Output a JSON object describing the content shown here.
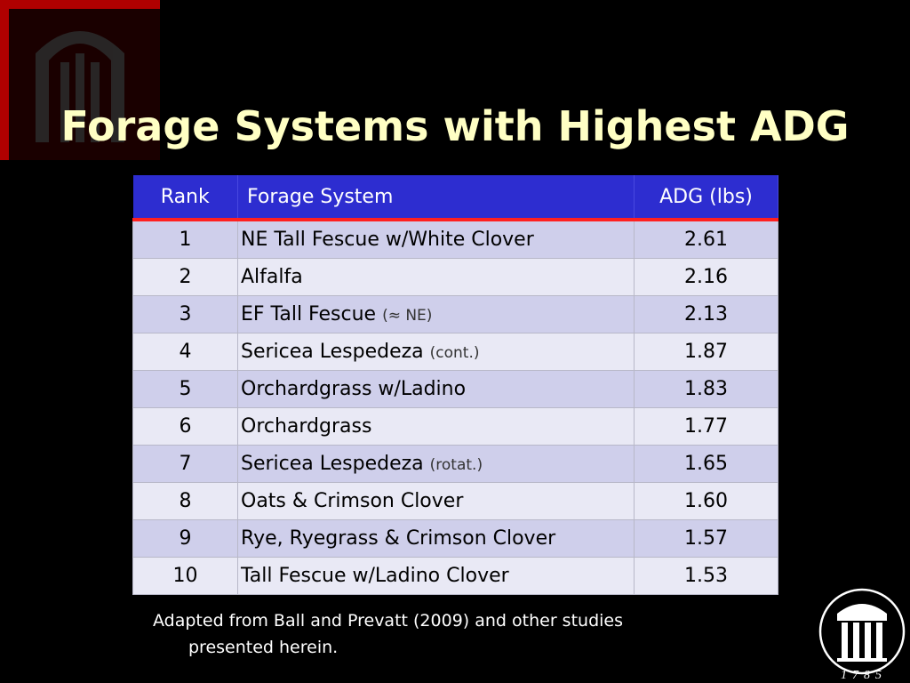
{
  "slide": {
    "title": "Forage Systems with Highest ADG",
    "table": {
      "headers": [
        "Rank",
        "Forage System",
        "ADG (lbs)"
      ],
      "rows": [
        {
          "rank": "1",
          "system": "NE Tall Fescue w/White Clover",
          "note": "",
          "adg": "2.61"
        },
        {
          "rank": "2",
          "system": "Alfalfa",
          "note": "",
          "adg": "2.16"
        },
        {
          "rank": "3",
          "system": "EF Tall Fescue ",
          "note": "(≈ NE)",
          "adg": "2.13"
        },
        {
          "rank": "4",
          "system": "Sericea Lespedeza ",
          "note": "(cont.)",
          "adg": "1.87"
        },
        {
          "rank": "5",
          "system": "Orchardgrass w/Ladino",
          "note": "",
          "adg": "1.83"
        },
        {
          "rank": "6",
          "system": "Orchardgrass",
          "note": "",
          "adg": "1.77"
        },
        {
          "rank": "7",
          "system": "Sericea Lespedeza ",
          "note": "(rotat.)",
          "adg": "1.65"
        },
        {
          "rank": "8",
          "system": "Oats & Crimson Clover",
          "note": "",
          "adg": "1.60"
        },
        {
          "rank": "9",
          "system": "Rye, Ryegrass & Crimson Clover",
          "note": "",
          "adg": "1.57"
        },
        {
          "rank": "10",
          "system": "Tall Fescue w/Ladino Clover",
          "note": "",
          "adg": "1.53"
        }
      ]
    },
    "source_line1": "Adapted from Ball and Prevatt (2009) and other studies",
    "source_line2": "presented herein.",
    "logo_year": "1785",
    "colors": {
      "background": "#000000",
      "title": "#ffffc4",
      "header_fill": "#2d2dd0",
      "header_rule": "#ff2020",
      "row_odd": "#cfcfeb",
      "row_even": "#e9e9f5"
    }
  }
}
